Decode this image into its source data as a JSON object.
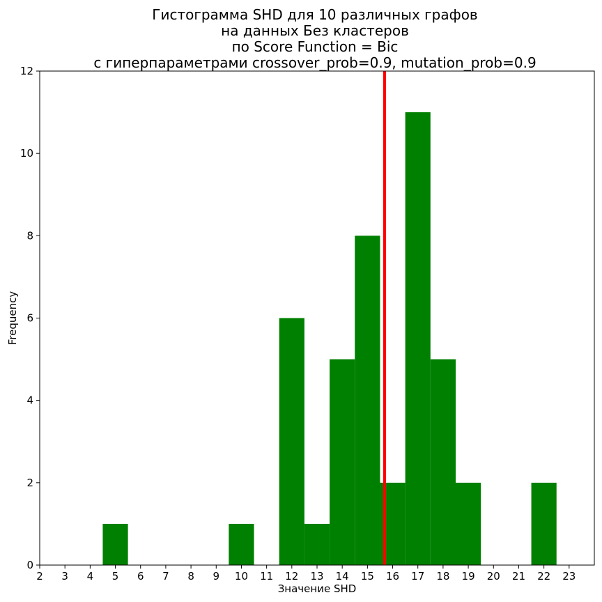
{
  "chart_data": {
    "type": "bar",
    "title": [
      "Гистограмма SHD для 10 различных графов",
      "на данных Без кластеров",
      "по Score Function = Bic",
      "с гиперпараметрами crossover_prob=0.9, mutation_prob=0.9"
    ],
    "xlabel": "Значение SHD",
    "ylabel": "Frequency",
    "xlim": [
      2,
      24
    ],
    "ylim": [
      0,
      12
    ],
    "x_ticks": [
      2,
      3,
      4,
      5,
      6,
      7,
      8,
      9,
      10,
      11,
      12,
      13,
      14,
      15,
      16,
      17,
      18,
      19,
      20,
      21,
      22,
      23
    ],
    "y_ticks": [
      0,
      2,
      4,
      6,
      8,
      10,
      12
    ],
    "bin_width": 1,
    "bars": [
      {
        "x": 5,
        "value": 1
      },
      {
        "x": 10,
        "value": 1
      },
      {
        "x": 12,
        "value": 6
      },
      {
        "x": 13,
        "value": 1
      },
      {
        "x": 14,
        "value": 5
      },
      {
        "x": 15,
        "value": 8
      },
      {
        "x": 16,
        "value": 2
      },
      {
        "x": 17,
        "value": 11
      },
      {
        "x": 18,
        "value": 5
      },
      {
        "x": 19,
        "value": 2
      },
      {
        "x": 22,
        "value": 2
      }
    ],
    "vline": {
      "x": 15.68,
      "color": "#ff0000"
    },
    "bar_color": "#008000",
    "grid": false,
    "legend": "none"
  }
}
